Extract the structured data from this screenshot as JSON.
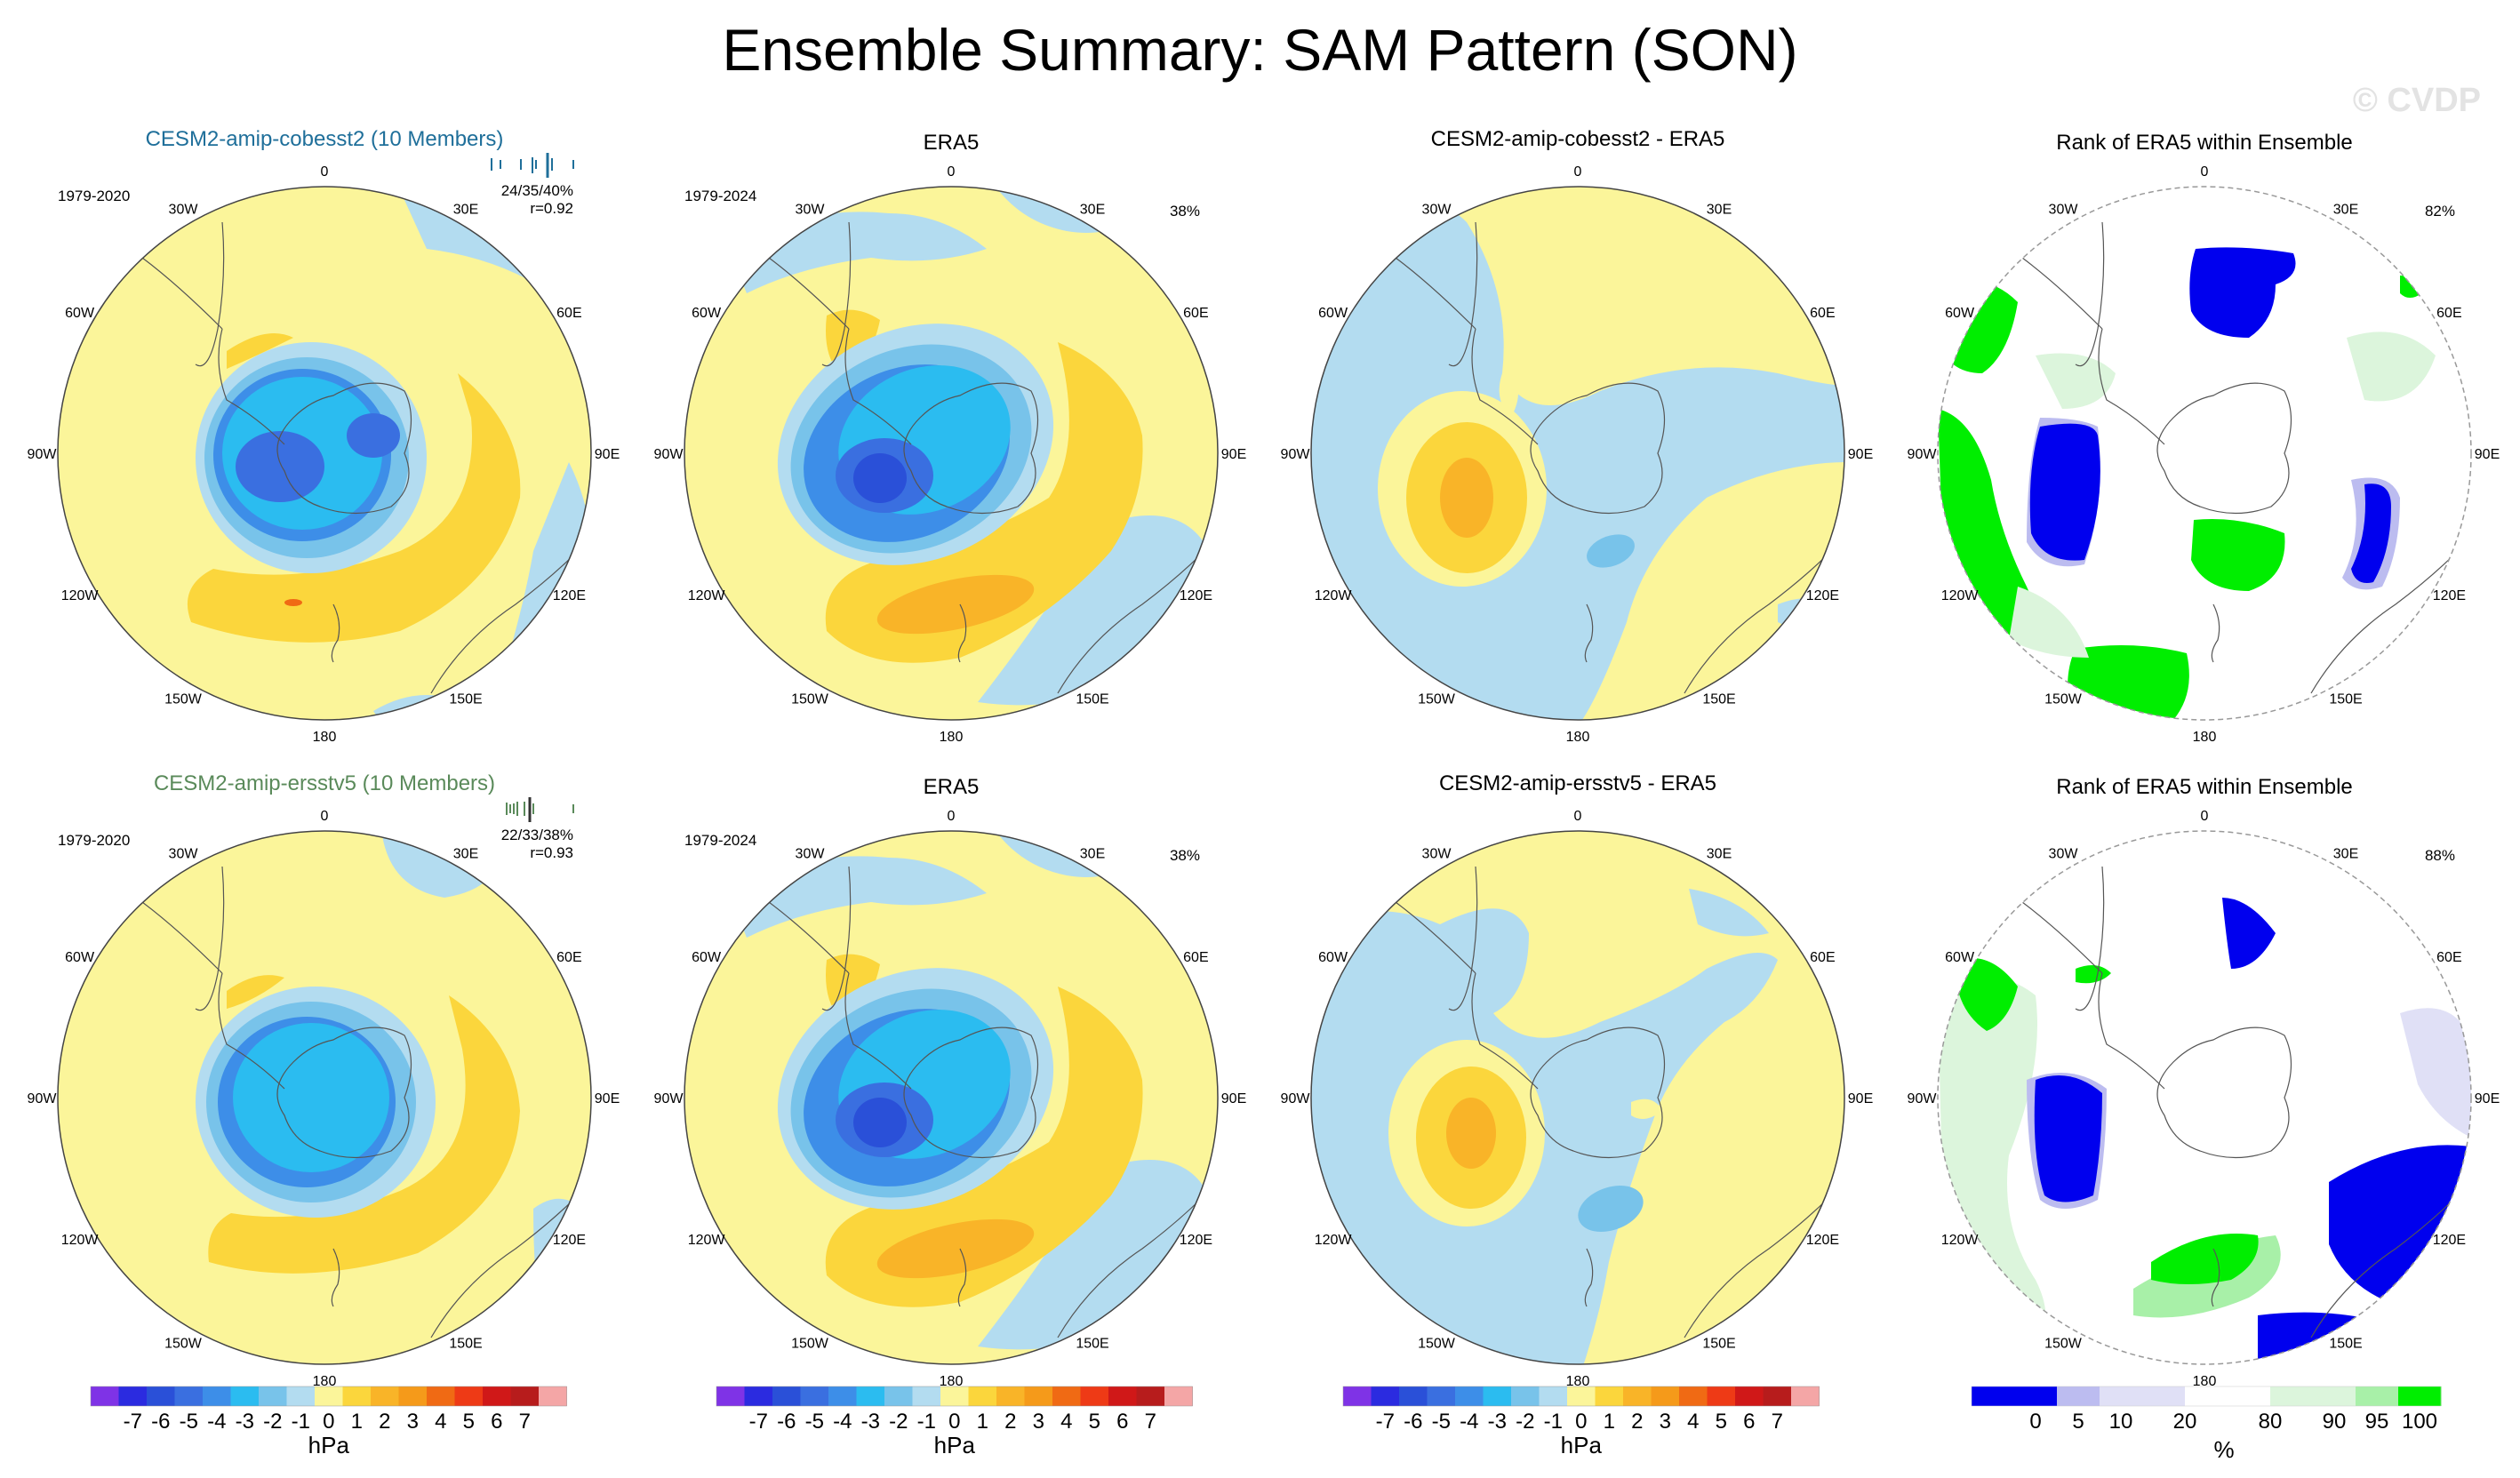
{
  "title": "Ensemble Summary: SAM Pattern (SON)",
  "watermark": "© CVDP",
  "lon_labels": [
    "0",
    "30E",
    "60E",
    "90E",
    "120E",
    "150E",
    "180",
    "150W",
    "120W",
    "90W",
    "60W",
    "30W"
  ],
  "colors": {
    "neg7": "#7f33e6",
    "neg6": "#2b2be0",
    "neg5": "#2a50d8",
    "neg4": "#3a6fe0",
    "neg3": "#3d8ee8",
    "neg2": "#2bbcf0",
    "neg1": "#78c3ea",
    "neg0": "#b3dcf0",
    "pos0": "#fbf59a",
    "pos1": "#fbd63c",
    "pos2": "#f9b428",
    "pos3": "#f59a1a",
    "pos4": "#f06a14",
    "pos5": "#ee3a16",
    "pos6": "#d01818",
    "pos7": "#b71c1c",
    "pos8": "#f4a6a6",
    "rank_blue": "#0000ee",
    "rank_lav": "#bcbcf0",
    "rank_pale_lav": "#e0e0f6",
    "rank_pale_green": "#dcf5dc",
    "rank_light_green": "#a8f0a8",
    "rank_green": "#00ee00",
    "model1_title": "#1f6f9a",
    "model2_title": "#5a8a5a"
  },
  "rows": [
    {
      "model": {
        "title": "CESM2-amip-cobesst2 (10 Members)",
        "years": "1979-2020",
        "stats": "24/35/40%",
        "corr": "r=0.92"
      },
      "era5": {
        "title": "ERA5",
        "years": "1979-2024",
        "pct": "38%"
      },
      "diff": {
        "title": "CESM2-amip-cobesst2 - ERA5"
      },
      "rank": {
        "title": "Rank of ERA5 within Ensemble",
        "pct": "82%"
      }
    },
    {
      "model": {
        "title": "CESM2-amip-ersstv5 (10 Members)",
        "years": "1979-2020",
        "stats": "22/33/38%",
        "corr": "r=0.93"
      },
      "era5": {
        "title": "ERA5",
        "years": "1979-2024",
        "pct": "38%"
      },
      "diff": {
        "title": "CESM2-amip-ersstv5 - ERA5"
      },
      "rank": {
        "title": "Rank of ERA5 within Ensemble",
        "pct": "88%"
      }
    }
  ],
  "colorbar_hpa": {
    "labels": [
      "-7",
      "-6",
      "-5",
      "-4",
      "-3",
      "-2",
      "-1",
      "0",
      "1",
      "2",
      "3",
      "4",
      "5",
      "6",
      "7"
    ],
    "units": "hPa"
  },
  "colorbar_rank": {
    "labels": [
      "0",
      "5",
      "10",
      "20",
      "80",
      "90",
      "95",
      "100"
    ],
    "units": "%"
  }
}
